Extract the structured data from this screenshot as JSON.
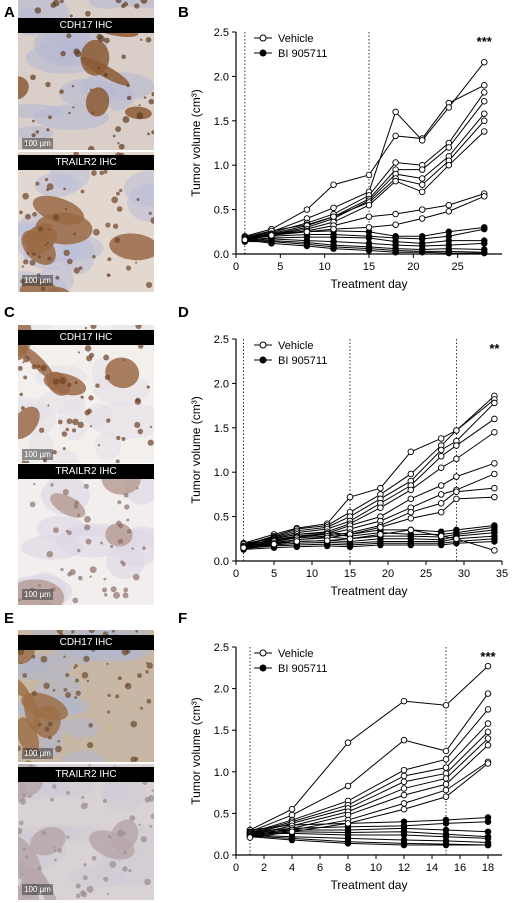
{
  "panels": {
    "A": "A",
    "B": "B",
    "C": "C",
    "D": "D",
    "E": "E",
    "F": "F"
  },
  "ihc": [
    {
      "top_title": "CDH17 IHC",
      "bottom_title": "TRAILR2 IHC",
      "scale_top": "100 µm",
      "scale_bottom": "100 µm",
      "top_colors": {
        "bg": "#d9cfc8",
        "tissue": "#8c5a34",
        "dark": "#5e3a1e",
        "stroma": "#b8b9d4"
      },
      "bottom_colors": {
        "bg": "#e3d8d0",
        "tissue": "#9a6a45",
        "dark": "#6d4428",
        "stroma": "#bcbfd8"
      }
    },
    {
      "top_title": "CDH17 IHC",
      "bottom_title": "TRAILR2 IHC",
      "scale_top": "100 µm",
      "scale_bottom": "100 µm",
      "top_colors": {
        "bg": "#f3efec",
        "tissue": "#9b6a48",
        "dark": "#6d4125",
        "stroma": "#e4dfe8"
      },
      "bottom_colors": {
        "bg": "#f2eeee",
        "tissue": "#b79d95",
        "dark": "#8e7068",
        "stroma": "#dcd6e4"
      }
    },
    {
      "top_title": "CDH17 IHC",
      "bottom_title": "TRAILR2 IHC",
      "scale_top": "100 µm",
      "scale_bottom": "100 µm",
      "top_colors": {
        "bg": "#c9b7a6",
        "tissue": "#9c7148",
        "dark": "#6e4b2c",
        "stroma": "#b2b7cc"
      },
      "bottom_colors": {
        "bg": "#d9d2d4",
        "tissue": "#b7a7aa",
        "dark": "#9a8a8e",
        "stroma": "#cfc9d3"
      }
    }
  ],
  "chart_data": [
    {
      "type": "line",
      "ylabel": "Tumor volume (cm³)",
      "xlabel": "Treatment day",
      "xlim": [
        0,
        30
      ],
      "ylim": [
        0,
        2.5
      ],
      "xticks": [
        0,
        5,
        10,
        15,
        20,
        25
      ],
      "yticks": [
        0.0,
        0.5,
        1.0,
        1.5,
        2.0,
        2.5
      ],
      "vlines": [
        1,
        15
      ],
      "significance": "***",
      "legend": [
        "Vehicle",
        "BI 905711"
      ],
      "x": [
        1,
        4,
        8,
        11,
        15,
        18,
        21,
        24,
        28
      ],
      "vehicle": [
        [
          0.2,
          0.28,
          0.5,
          0.78,
          0.89,
          1.33,
          1.3,
          1.7,
          1.9
        ],
        [
          0.18,
          0.25,
          0.4,
          0.52,
          0.7,
          1.6,
          1.28,
          1.65,
          2.16
        ],
        [
          0.17,
          0.24,
          0.35,
          0.45,
          0.66,
          1.03,
          1.0,
          1.25,
          1.82
        ],
        [
          0.19,
          0.26,
          0.33,
          0.42,
          0.62,
          0.95,
          0.95,
          1.2,
          1.72
        ],
        [
          0.16,
          0.22,
          0.3,
          0.4,
          0.6,
          0.9,
          0.85,
          1.1,
          1.58
        ],
        [
          0.18,
          0.23,
          0.32,
          0.42,
          0.58,
          0.85,
          0.78,
          1.05,
          1.5
        ],
        [
          0.15,
          0.22,
          0.28,
          0.36,
          0.55,
          0.82,
          0.7,
          1.0,
          1.38
        ],
        [
          0.17,
          0.22,
          0.26,
          0.32,
          0.42,
          0.45,
          0.5,
          0.55,
          0.68
        ],
        [
          0.16,
          0.21,
          0.25,
          0.28,
          0.3,
          0.33,
          0.4,
          0.48,
          0.65
        ]
      ],
      "bi": [
        [
          0.18,
          0.22,
          0.25,
          0.26,
          0.25,
          0.2,
          0.2,
          0.25,
          0.3
        ],
        [
          0.17,
          0.2,
          0.22,
          0.22,
          0.2,
          0.18,
          0.17,
          0.2,
          0.28
        ],
        [
          0.16,
          0.18,
          0.19,
          0.19,
          0.18,
          0.14,
          0.12,
          0.15,
          0.15
        ],
        [
          0.15,
          0.17,
          0.15,
          0.14,
          0.12,
          0.1,
          0.09,
          0.1,
          0.12
        ],
        [
          0.15,
          0.15,
          0.13,
          0.1,
          0.08,
          0.06,
          0.05,
          0.06,
          0.05
        ],
        [
          0.14,
          0.14,
          0.11,
          0.08,
          0.06,
          0.04,
          0.03,
          0.03,
          0.02
        ],
        [
          0.16,
          0.12,
          0.09,
          0.06,
          0.04,
          0.02,
          0.02,
          0.01,
          0.01
        ]
      ]
    },
    {
      "type": "line",
      "ylabel": "Tumor volume (cm³)",
      "xlabel": "Treatment day",
      "xlim": [
        0,
        35
      ],
      "ylim": [
        0,
        2.5
      ],
      "xticks": [
        0,
        5,
        10,
        15,
        20,
        25,
        30,
        35
      ],
      "yticks": [
        0.0,
        0.5,
        1.0,
        1.5,
        2.0,
        2.5
      ],
      "vlines": [
        1,
        15,
        29
      ],
      "significance": "**",
      "legend": [
        "Vehicle",
        "BI 905711"
      ],
      "x": [
        1,
        5,
        8,
        12,
        15,
        19,
        23,
        27,
        29,
        34
      ],
      "vehicle": [
        [
          0.2,
          0.3,
          0.37,
          0.42,
          0.72,
          0.82,
          1.23,
          1.38,
          1.47,
          1.86
        ],
        [
          0.18,
          0.28,
          0.36,
          0.4,
          0.55,
          0.75,
          0.98,
          1.3,
          1.47,
          1.82
        ],
        [
          0.17,
          0.27,
          0.34,
          0.38,
          0.5,
          0.7,
          0.9,
          1.25,
          1.35,
          1.78
        ],
        [
          0.19,
          0.26,
          0.32,
          0.36,
          0.45,
          0.65,
          0.85,
          1.18,
          1.3,
          1.6
        ],
        [
          0.16,
          0.25,
          0.3,
          0.33,
          0.42,
          0.6,
          0.8,
          1.05,
          1.15,
          1.45
        ],
        [
          0.17,
          0.24,
          0.28,
          0.31,
          0.4,
          0.5,
          0.7,
          0.85,
          0.95,
          1.1
        ],
        [
          0.15,
          0.23,
          0.27,
          0.3,
          0.36,
          0.45,
          0.6,
          0.75,
          0.8,
          0.98
        ],
        [
          0.16,
          0.22,
          0.26,
          0.28,
          0.32,
          0.4,
          0.55,
          0.65,
          0.78,
          0.82
        ],
        [
          0.14,
          0.2,
          0.24,
          0.26,
          0.3,
          0.38,
          0.48,
          0.55,
          0.7,
          0.72
        ],
        [
          0.15,
          0.19,
          0.22,
          0.23,
          0.25,
          0.3,
          0.35,
          0.28,
          0.25,
          0.12
        ]
      ],
      "bi": [
        [
          0.2,
          0.25,
          0.3,
          0.32,
          0.3,
          0.35,
          0.35,
          0.33,
          0.35,
          0.4
        ],
        [
          0.18,
          0.23,
          0.27,
          0.3,
          0.28,
          0.32,
          0.3,
          0.3,
          0.32,
          0.38
        ],
        [
          0.17,
          0.21,
          0.24,
          0.27,
          0.25,
          0.28,
          0.28,
          0.27,
          0.3,
          0.35
        ],
        [
          0.16,
          0.2,
          0.22,
          0.23,
          0.22,
          0.25,
          0.25,
          0.24,
          0.28,
          0.32
        ],
        [
          0.15,
          0.18,
          0.2,
          0.21,
          0.2,
          0.22,
          0.22,
          0.22,
          0.25,
          0.28
        ],
        [
          0.14,
          0.17,
          0.18,
          0.19,
          0.18,
          0.2,
          0.2,
          0.2,
          0.22,
          0.25
        ],
        [
          0.13,
          0.15,
          0.16,
          0.17,
          0.16,
          0.18,
          0.18,
          0.18,
          0.2,
          0.22
        ]
      ]
    },
    {
      "type": "line",
      "ylabel": "Tumor volume (cm³)",
      "xlabel": "Treatment day",
      "xlim": [
        0,
        19
      ],
      "ylim": [
        0,
        2.5
      ],
      "xticks": [
        0,
        2,
        4,
        6,
        8,
        10,
        12,
        14,
        16,
        18
      ],
      "yticks": [
        0.0,
        0.5,
        1.0,
        1.5,
        2.0,
        2.5
      ],
      "vlines": [
        1,
        15
      ],
      "significance": "***",
      "legend": [
        "Vehicle",
        "BI 905711"
      ],
      "x": [
        1,
        4,
        8,
        12,
        15,
        18
      ],
      "vehicle": [
        [
          0.3,
          0.55,
          1.35,
          1.85,
          1.8,
          2.27
        ],
        [
          0.28,
          0.48,
          0.83,
          1.38,
          1.25,
          1.94
        ],
        [
          0.27,
          0.42,
          0.65,
          1.02,
          1.15,
          1.75
        ],
        [
          0.26,
          0.4,
          0.6,
          0.95,
          1.05,
          1.58
        ],
        [
          0.25,
          0.38,
          0.56,
          0.88,
          0.98,
          1.48
        ],
        [
          0.24,
          0.35,
          0.52,
          0.8,
          0.92,
          1.4
        ],
        [
          0.23,
          0.32,
          0.48,
          0.72,
          0.85,
          1.32
        ],
        [
          0.22,
          0.3,
          0.42,
          0.62,
          0.78,
          1.12
        ],
        [
          0.21,
          0.28,
          0.38,
          0.55,
          0.7,
          1.1
        ]
      ],
      "bi": [
        [
          0.3,
          0.36,
          0.38,
          0.4,
          0.42,
          0.45
        ],
        [
          0.28,
          0.32,
          0.34,
          0.35,
          0.38,
          0.4
        ],
        [
          0.27,
          0.3,
          0.3,
          0.32,
          0.3,
          0.28
        ],
        [
          0.26,
          0.28,
          0.27,
          0.28,
          0.25,
          0.22
        ],
        [
          0.25,
          0.26,
          0.24,
          0.24,
          0.22,
          0.2
        ],
        [
          0.24,
          0.22,
          0.2,
          0.18,
          0.17,
          0.15
        ],
        [
          0.23,
          0.2,
          0.16,
          0.14,
          0.13,
          0.12
        ],
        [
          0.22,
          0.18,
          0.14,
          0.12,
          0.12,
          0.12
        ]
      ]
    }
  ]
}
